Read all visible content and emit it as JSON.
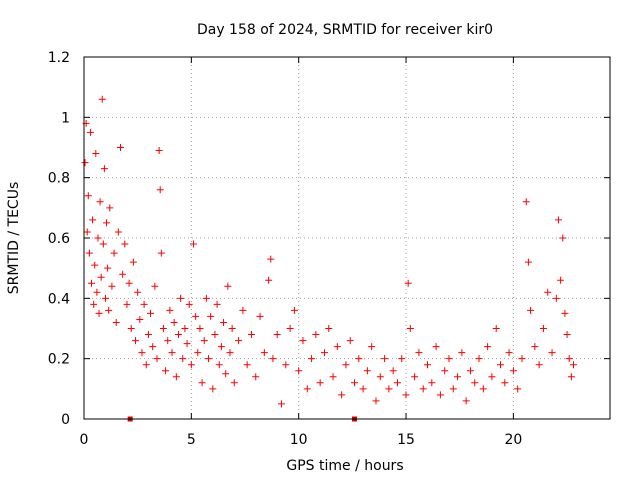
{
  "chart_data": {
    "type": "scatter",
    "title": "Day 158 of 2024, SRMTID for receiver kir0",
    "xlabel": "GPS time / hours",
    "ylabel": "SRMTID / TECUs",
    "xlim": [
      0,
      24.5
    ],
    "ylim": [
      0,
      1.2
    ],
    "xticks": [
      0,
      5,
      10,
      15,
      20
    ],
    "xtick_labels": [
      "0",
      "5",
      "10",
      "15",
      "20"
    ],
    "yticks": [
      0,
      0.2,
      0.4,
      0.6,
      0.8,
      1.0,
      1.2
    ],
    "ytick_labels": [
      "0",
      "0.2",
      "0.4",
      "0.6",
      "0.8",
      "1",
      "1.2"
    ],
    "grid": true,
    "legend": "none",
    "marker": "plus",
    "color": "#ff0000",
    "series": [
      {
        "name": "SRMTID",
        "points": [
          [
            0.05,
            0.85
          ],
          [
            0.1,
            0.98
          ],
          [
            0.15,
            0.62
          ],
          [
            0.2,
            0.74
          ],
          [
            0.25,
            0.55
          ],
          [
            0.3,
            0.95
          ],
          [
            0.35,
            0.45
          ],
          [
            0.4,
            0.66
          ],
          [
            0.45,
            0.38
          ],
          [
            0.5,
            0.51
          ],
          [
            0.55,
            0.88
          ],
          [
            0.6,
            0.42
          ],
          [
            0.65,
            0.6
          ],
          [
            0.7,
            0.35
          ],
          [
            0.75,
            0.72
          ],
          [
            0.8,
            0.47
          ],
          [
            0.85,
            1.06
          ],
          [
            0.9,
            0.58
          ],
          [
            0.95,
            0.83
          ],
          [
            1.0,
            0.4
          ],
          [
            1.05,
            0.65
          ],
          [
            1.1,
            0.5
          ],
          [
            1.15,
            0.36
          ],
          [
            1.2,
            0.7
          ],
          [
            1.3,
            0.44
          ],
          [
            1.4,
            0.55
          ],
          [
            1.5,
            0.32
          ],
          [
            1.6,
            0.62
          ],
          [
            1.7,
            0.9
          ],
          [
            1.8,
            0.48
          ],
          [
            1.9,
            0.58
          ],
          [
            2.0,
            0.38
          ],
          [
            2.1,
            0.45
          ],
          [
            2.2,
            0.3
          ],
          [
            2.3,
            0.52
          ],
          [
            2.4,
            0.26
          ],
          [
            2.5,
            0.42
          ],
          [
            2.6,
            0.33
          ],
          [
            2.7,
            0.22
          ],
          [
            2.8,
            0.38
          ],
          [
            2.9,
            0.18
          ],
          [
            3.0,
            0.28
          ],
          [
            3.1,
            0.35
          ],
          [
            3.2,
            0.24
          ],
          [
            3.3,
            0.44
          ],
          [
            3.4,
            0.2
          ],
          [
            3.5,
            0.89
          ],
          [
            3.55,
            0.76
          ],
          [
            3.6,
            0.55
          ],
          [
            3.7,
            0.3
          ],
          [
            3.8,
            0.16
          ],
          [
            3.9,
            0.26
          ],
          [
            4.0,
            0.36
          ],
          [
            4.1,
            0.22
          ],
          [
            4.2,
            0.32
          ],
          [
            4.3,
            0.14
          ],
          [
            4.4,
            0.28
          ],
          [
            4.5,
            0.4
          ],
          [
            4.6,
            0.2
          ],
          [
            4.7,
            0.3
          ],
          [
            4.8,
            0.25
          ],
          [
            4.9,
            0.38
          ],
          [
            5.0,
            0.18
          ],
          [
            5.1,
            0.58
          ],
          [
            5.2,
            0.34
          ],
          [
            5.3,
            0.22
          ],
          [
            5.4,
            0.3
          ],
          [
            5.5,
            0.12
          ],
          [
            5.6,
            0.26
          ],
          [
            5.7,
            0.4
          ],
          [
            5.8,
            0.2
          ],
          [
            5.9,
            0.34
          ],
          [
            6.0,
            0.1
          ],
          [
            6.1,
            0.28
          ],
          [
            6.2,
            0.38
          ],
          [
            6.3,
            0.18
          ],
          [
            6.4,
            0.24
          ],
          [
            6.5,
            0.32
          ],
          [
            6.6,
            0.15
          ],
          [
            6.7,
            0.44
          ],
          [
            6.8,
            0.22
          ],
          [
            6.9,
            0.3
          ],
          [
            7.0,
            0.12
          ],
          [
            7.2,
            0.26
          ],
          [
            7.4,
            0.36
          ],
          [
            7.6,
            0.18
          ],
          [
            7.8,
            0.28
          ],
          [
            8.0,
            0.14
          ],
          [
            8.2,
            0.34
          ],
          [
            8.4,
            0.22
          ],
          [
            8.6,
            0.46
          ],
          [
            8.7,
            0.53
          ],
          [
            8.8,
            0.2
          ],
          [
            9.0,
            0.28
          ],
          [
            9.2,
            0.05
          ],
          [
            9.4,
            0.18
          ],
          [
            9.6,
            0.3
          ],
          [
            9.8,
            0.36
          ],
          [
            10.0,
            0.16
          ],
          [
            10.2,
            0.26
          ],
          [
            10.4,
            0.1
          ],
          [
            10.6,
            0.2
          ],
          [
            10.8,
            0.28
          ],
          [
            11.0,
            0.12
          ],
          [
            11.2,
            0.22
          ],
          [
            11.4,
            0.3
          ],
          [
            11.6,
            0.14
          ],
          [
            11.8,
            0.24
          ],
          [
            12.0,
            0.08
          ],
          [
            12.2,
            0.18
          ],
          [
            12.4,
            0.26
          ],
          [
            12.6,
            0.12
          ],
          [
            12.8,
            0.2
          ],
          [
            13.0,
            0.1
          ],
          [
            13.2,
            0.16
          ],
          [
            13.4,
            0.24
          ],
          [
            13.6,
            0.06
          ],
          [
            13.8,
            0.14
          ],
          [
            14.0,
            0.2
          ],
          [
            14.2,
            0.1
          ],
          [
            14.4,
            0.16
          ],
          [
            14.6,
            0.12
          ],
          [
            14.8,
            0.2
          ],
          [
            15.0,
            0.08
          ],
          [
            15.1,
            0.45
          ],
          [
            15.2,
            0.3
          ],
          [
            15.4,
            0.14
          ],
          [
            15.6,
            0.22
          ],
          [
            15.8,
            0.1
          ],
          [
            16.0,
            0.18
          ],
          [
            16.2,
            0.12
          ],
          [
            16.4,
            0.24
          ],
          [
            16.6,
            0.08
          ],
          [
            16.8,
            0.16
          ],
          [
            17.0,
            0.2
          ],
          [
            17.2,
            0.1
          ],
          [
            17.4,
            0.14
          ],
          [
            17.6,
            0.22
          ],
          [
            17.8,
            0.06
          ],
          [
            18.0,
            0.16
          ],
          [
            18.2,
            0.12
          ],
          [
            18.4,
            0.2
          ],
          [
            18.6,
            0.1
          ],
          [
            18.8,
            0.24
          ],
          [
            19.0,
            0.14
          ],
          [
            19.2,
            0.3
          ],
          [
            19.4,
            0.18
          ],
          [
            19.6,
            0.12
          ],
          [
            19.8,
            0.22
          ],
          [
            20.0,
            0.16
          ],
          [
            20.2,
            0.1
          ],
          [
            20.4,
            0.2
          ],
          [
            20.6,
            0.72
          ],
          [
            20.7,
            0.52
          ],
          [
            20.8,
            0.36
          ],
          [
            21.0,
            0.24
          ],
          [
            21.2,
            0.18
          ],
          [
            21.4,
            0.3
          ],
          [
            21.6,
            0.42
          ],
          [
            21.8,
            0.22
          ],
          [
            22.0,
            0.4
          ],
          [
            22.1,
            0.66
          ],
          [
            22.2,
            0.46
          ],
          [
            22.3,
            0.6
          ],
          [
            22.4,
            0.35
          ],
          [
            22.5,
            0.28
          ],
          [
            22.6,
            0.2
          ],
          [
            22.7,
            0.14
          ],
          [
            22.8,
            0.18
          ]
        ]
      },
      {
        "name": "axis-markers",
        "color": "#d00000",
        "points": [
          [
            2.15,
            0
          ],
          [
            12.6,
            0
          ]
        ]
      }
    ]
  }
}
